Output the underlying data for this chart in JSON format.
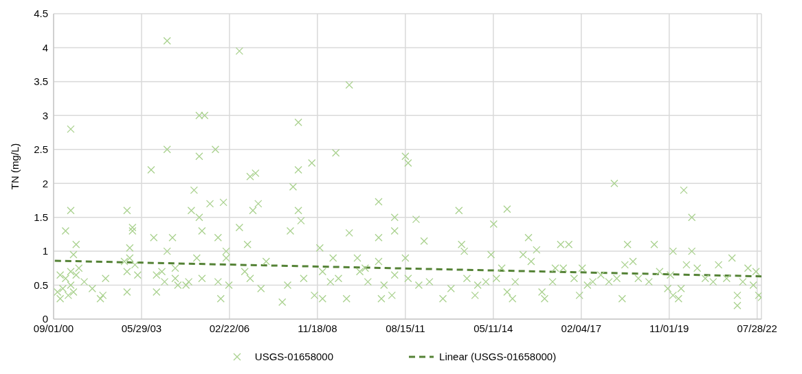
{
  "chart_data": {
    "type": "scatter",
    "ylabel": "TN (mg/L)",
    "xlim": [
      "2000-09-01",
      "2022-09-15"
    ],
    "xticks": [
      {
        "value": "2000-09-01",
        "label": "09/01/00"
      },
      {
        "value": "2003-05-29",
        "label": "05/29/03"
      },
      {
        "value": "2006-02-22",
        "label": "02/22/06"
      },
      {
        "value": "2008-11-18",
        "label": "11/18/08"
      },
      {
        "value": "2011-08-15",
        "label": "08/15/11"
      },
      {
        "value": "2014-05-11",
        "label": "05/11/14"
      },
      {
        "value": "2017-02-04",
        "label": "02/04/17"
      },
      {
        "value": "2019-11-01",
        "label": "11/01/19"
      },
      {
        "value": "2022-07-28",
        "label": "07/28/22"
      }
    ],
    "ylim": [
      0,
      4.5
    ],
    "yticks": [
      0,
      0.5,
      1,
      1.5,
      2,
      2.5,
      3,
      3.5,
      4,
      4.5
    ],
    "grid": true,
    "legend": "bottom",
    "series": [
      {
        "name": "USGS-01658000",
        "color": "#a9d18e",
        "marker": "cross",
        "x": [
          "2000-10",
          "2000-11",
          "2000-11",
          "2000-12",
          "2001-01",
          "2001-01",
          "2001-02",
          "2001-03",
          "2001-03",
          "2001-03",
          "2001-03",
          "2001-04",
          "2001-04",
          "2001-05",
          "2001-05",
          "2001-06",
          "2001-08",
          "2001-11",
          "2002-02",
          "2002-03",
          "2002-04",
          "2002-11",
          "2002-12",
          "2002-12",
          "2002-12",
          "2003-01",
          "2003-01",
          "2003-02",
          "2003-02",
          "2003-03",
          "2003-04",
          "2003-09",
          "2003-10",
          "2003-11",
          "2003-11",
          "2004-01",
          "2004-02",
          "2004-03",
          "2004-03",
          "2004-03",
          "2004-05",
          "2004-06",
          "2004-06",
          "2004-07",
          "2004-10",
          "2004-11",
          "2004-12",
          "2005-01",
          "2005-02",
          "2005-03",
          "2005-03",
          "2005-03",
          "2005-04",
          "2005-04",
          "2005-05",
          "2005-07",
          "2005-09",
          "2005-10",
          "2005-10",
          "2005-11",
          "2005-12",
          "2006-01",
          "2006-01",
          "2006-02",
          "2006-06",
          "2006-06",
          "2006-08",
          "2006-09",
          "2006-10",
          "2006-10",
          "2006-11",
          "2006-12",
          "2007-01",
          "2007-02",
          "2007-04",
          "2007-10",
          "2007-12",
          "2008-01",
          "2008-02",
          "2008-04",
          "2008-04",
          "2008-04",
          "2008-05",
          "2008-06",
          "2008-09",
          "2008-10",
          "2008-12",
          "2009-01",
          "2009-01",
          "2009-04",
          "2009-05",
          "2009-06",
          "2009-07",
          "2009-10",
          "2009-11",
          "2009-11",
          "2010-02",
          "2010-03",
          "2010-05",
          "2010-06",
          "2010-10",
          "2010-10",
          "2010-10",
          "2010-11",
          "2010-12",
          "2011-03",
          "2011-04",
          "2011-04",
          "2011-04",
          "2011-08",
          "2011-08",
          "2011-09",
          "2011-09",
          "2011-12",
          "2012-01",
          "2012-03",
          "2012-05",
          "2012-10",
          "2013-01",
          "2013-04",
          "2013-05",
          "2013-06",
          "2013-07",
          "2013-10",
          "2013-11",
          "2014-02",
          "2014-04",
          "2014-05",
          "2014-06",
          "2014-08",
          "2014-10",
          "2014-10",
          "2014-12",
          "2015-01",
          "2015-04",
          "2015-06",
          "2015-07",
          "2015-09",
          "2015-11",
          "2015-12",
          "2016-03",
          "2016-04",
          "2016-06",
          "2016-07",
          "2016-09",
          "2016-11",
          "2017-01",
          "2017-02",
          "2017-04",
          "2017-06",
          "2017-09",
          "2017-12",
          "2018-02",
          "2018-03",
          "2018-05",
          "2018-06",
          "2018-07",
          "2018-09",
          "2018-11",
          "2019-03",
          "2019-05",
          "2019-07",
          "2019-10",
          "2019-11",
          "2019-12",
          "2019-12",
          "2020-02",
          "2020-03",
          "2020-04",
          "2020-05",
          "2020-07",
          "2020-07",
          "2020-09",
          "2020-12",
          "2021-03",
          "2021-05",
          "2021-08",
          "2021-10",
          "2021-12",
          "2021-12",
          "2022-02",
          "2022-04",
          "2022-06",
          "2022-07",
          "2022-08",
          "2022-09"
        ],
        "values": [
          0.4,
          0.3,
          0.65,
          0.45,
          1.3,
          0.6,
          0.35,
          2.8,
          1.6,
          0.5,
          0.7,
          0.95,
          0.4,
          1.1,
          0.65,
          0.75,
          0.55,
          0.45,
          0.3,
          0.35,
          0.6,
          0.85,
          1.6,
          0.4,
          0.7,
          1.05,
          0.9,
          1.35,
          1.3,
          0.8,
          0.65,
          2.2,
          1.2,
          0.65,
          0.4,
          0.7,
          0.55,
          1.0,
          4.1,
          2.5,
          1.2,
          0.6,
          0.75,
          0.5,
          0.5,
          0.55,
          1.6,
          1.9,
          0.9,
          2.4,
          1.5,
          3.0,
          1.3,
          0.6,
          3.0,
          1.7,
          2.5,
          1.2,
          0.55,
          0.3,
          1.72,
          0.9,
          1.0,
          0.5,
          3.95,
          1.35,
          0.7,
          1.1,
          2.1,
          0.6,
          1.6,
          2.15,
          1.7,
          0.45,
          0.85,
          0.25,
          0.5,
          1.3,
          1.95,
          1.6,
          2.2,
          2.9,
          1.45,
          0.6,
          2.3,
          0.35,
          1.05,
          0.7,
          0.3,
          0.55,
          0.9,
          2.45,
          0.6,
          0.3,
          1.27,
          3.45,
          0.9,
          0.7,
          0.75,
          0.55,
          1.73,
          1.2,
          0.85,
          0.3,
          0.5,
          0.35,
          1.5,
          1.3,
          0.65,
          0.9,
          2.4,
          2.3,
          0.6,
          1.47,
          0.5,
          1.15,
          0.55,
          0.3,
          0.45,
          1.6,
          1.1,
          1.0,
          0.6,
          0.35,
          0.5,
          0.55,
          0.95,
          1.4,
          0.6,
          0.75,
          1.62,
          0.4,
          0.3,
          0.55,
          0.95,
          1.2,
          0.85,
          1.02,
          0.4,
          0.3,
          0.55,
          0.75,
          1.1,
          0.75,
          1.1,
          0.6,
          0.35,
          0.75,
          0.5,
          0.55,
          0.65,
          0.55,
          2.0,
          0.6,
          0.3,
          0.8,
          1.1,
          0.85,
          0.6,
          0.55,
          1.1,
          0.7,
          0.45,
          0.65,
          1.0,
          0.35,
          0.3,
          0.45,
          1.9,
          0.8,
          1.5,
          1.0,
          0.75,
          0.6,
          0.55,
          0.8,
          0.6,
          0.9,
          0.35,
          0.2,
          0.55,
          0.75,
          0.5,
          0.7,
          0.35,
          0.32
        ]
      },
      {
        "name": "Linear (USGS-01658000)",
        "color": "#548235",
        "type": "line",
        "line_style": "dashed",
        "x": [
          "2000-09",
          "2022-09"
        ],
        "values": [
          0.86,
          0.63
        ]
      }
    ]
  }
}
